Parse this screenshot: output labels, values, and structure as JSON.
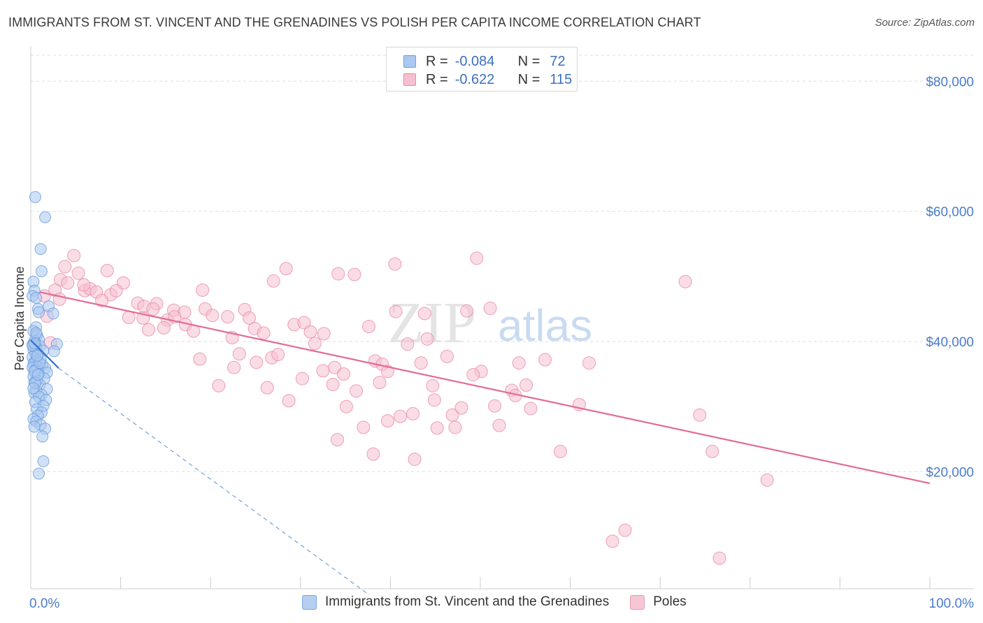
{
  "title": "IMMIGRANTS FROM ST. VINCENT AND THE GRENADINES VS POLISH PER CAPITA INCOME CORRELATION CHART",
  "source": "Source: ZipAtlas.com",
  "watermark": {
    "zip": "ZIP",
    "atlas": "atlas"
  },
  "legend": {
    "r_label": "R =",
    "n_label": "N =",
    "rows": [
      {
        "r": "-0.084",
        "n": "72",
        "color": "#aac8f0",
        "border": "#6f9fdf"
      },
      {
        "r": "-0.622",
        "n": "115",
        "color": "#f6bfd0",
        "border": "#e98aa9"
      }
    ]
  },
  "bottom_legend": [
    {
      "name": "Immigrants from St. Vincent and the Grenadines",
      "color": "#b6cff0",
      "border": "#7aa6de"
    },
    {
      "name": "Poles",
      "color": "#f7c6d5",
      "border": "#e79ab3"
    }
  ],
  "chart_data": {
    "type": "scatter",
    "title": "IMMIGRANTS FROM ST. VINCENT AND THE GRENADINES VS POLISH PER CAPITA INCOME CORRELATION CHART",
    "xlabel": "",
    "ylabel": "Per Capita Income",
    "xlim": [
      0,
      100
    ],
    "ylim": [
      2000,
      84000
    ],
    "x_tick_labels": [
      "0.0%",
      "100.0%"
    ],
    "y_ticks": [
      20000,
      40000,
      60000,
      80000
    ],
    "y_tick_labels": [
      "$20,000",
      "$40,000",
      "$60,000",
      "$80,000"
    ],
    "grid": true,
    "legend_position": "top-center",
    "series": [
      {
        "name": "Immigrants from St. Vincent and the Grenadines",
        "color": "#6f9fdf",
        "fill": "#aac8f0",
        "R": -0.084,
        "N": 72,
        "trend_solid": {
          "x": [
            0,
            3.1
          ],
          "y": [
            40200,
            35900
          ]
        },
        "trend_dashed": {
          "x": [
            3.1,
            37.5
          ],
          "y": [
            35900,
            1200
          ]
        },
        "points": [
          [
            0.5,
            62200
          ],
          [
            1.6,
            59100
          ],
          [
            1.1,
            54200
          ],
          [
            1.2,
            50800
          ],
          [
            0.3,
            49200
          ],
          [
            0.4,
            47800
          ],
          [
            0.2,
            47000
          ],
          [
            0.6,
            46700
          ],
          [
            2.0,
            45400
          ],
          [
            0.8,
            45000
          ],
          [
            0.9,
            44500
          ],
          [
            2.5,
            44300
          ],
          [
            0.6,
            42200
          ],
          [
            0.3,
            41600
          ],
          [
            0.7,
            41000
          ],
          [
            0.9,
            40300
          ],
          [
            0.4,
            40100
          ],
          [
            0.5,
            39800
          ],
          [
            0.2,
            39500
          ],
          [
            2.9,
            39600
          ],
          [
            1.0,
            39300
          ],
          [
            0.6,
            39000
          ],
          [
            0.3,
            38700
          ],
          [
            1.4,
            38600
          ],
          [
            2.6,
            38500
          ],
          [
            0.5,
            38200
          ],
          [
            0.8,
            37900
          ],
          [
            0.2,
            37600
          ],
          [
            1.1,
            37300
          ],
          [
            0.6,
            37100
          ],
          [
            0.4,
            36800
          ],
          [
            0.3,
            36500
          ],
          [
            1.3,
            36400
          ],
          [
            0.7,
            36200
          ],
          [
            0.2,
            36000
          ],
          [
            1.6,
            35900
          ],
          [
            0.5,
            35600
          ],
          [
            1.8,
            35200
          ],
          [
            0.9,
            35000
          ],
          [
            0.3,
            34600
          ],
          [
            1.5,
            34300
          ],
          [
            0.7,
            34000
          ],
          [
            0.4,
            33700
          ],
          [
            1.0,
            33400
          ],
          [
            1.8,
            32700
          ],
          [
            0.6,
            32400
          ],
          [
            0.4,
            32100
          ],
          [
            1.2,
            31800
          ],
          [
            0.9,
            31500
          ],
          [
            1.7,
            31000
          ],
          [
            0.5,
            30700
          ],
          [
            1.4,
            30100
          ],
          [
            0.7,
            29600
          ],
          [
            1.2,
            29100
          ],
          [
            0.8,
            28600
          ],
          [
            0.3,
            28100
          ],
          [
            0.6,
            27700
          ],
          [
            1.1,
            27200
          ],
          [
            0.4,
            26900
          ],
          [
            1.6,
            26600
          ],
          [
            1.3,
            25400
          ],
          [
            1.4,
            21600
          ],
          [
            0.9,
            19700
          ],
          [
            0.2,
            39400
          ],
          [
            0.4,
            35400
          ],
          [
            0.5,
            33600
          ],
          [
            0.3,
            32800
          ],
          [
            1.0,
            36700
          ],
          [
            0.6,
            41300
          ],
          [
            0.7,
            37800
          ],
          [
            0.8,
            34900
          ],
          [
            0.4,
            39700
          ]
        ]
      },
      {
        "name": "Poles",
        "color": "#e98aa9",
        "fill": "#f6bfd0",
        "R": -0.622,
        "N": 115,
        "trend_solid": {
          "x": [
            1.0,
            100
          ],
          "y": [
            47600,
            18200
          ]
        },
        "points": [
          [
            4.8,
            53200
          ],
          [
            3.8,
            51500
          ],
          [
            5.3,
            50500
          ],
          [
            3.3,
            49500
          ],
          [
            8.5,
            50900
          ],
          [
            10.3,
            49000
          ],
          [
            2.7,
            47900
          ],
          [
            6.0,
            47800
          ],
          [
            6.6,
            48100
          ],
          [
            7.3,
            47600
          ],
          [
            8.9,
            47200
          ],
          [
            9.5,
            47800
          ],
          [
            7.9,
            46300
          ],
          [
            11.9,
            45900
          ],
          [
            14.0,
            45800
          ],
          [
            12.6,
            45400
          ],
          [
            13.6,
            45000
          ],
          [
            15.9,
            44800
          ],
          [
            17.1,
            44500
          ],
          [
            10.9,
            43700
          ],
          [
            12.5,
            43600
          ],
          [
            15.2,
            43300
          ],
          [
            16.0,
            43800
          ],
          [
            17.2,
            42600
          ],
          [
            14.8,
            42100
          ],
          [
            18.1,
            41600
          ],
          [
            19.1,
            47900
          ],
          [
            19.4,
            45000
          ],
          [
            20.2,
            44000
          ],
          [
            21.9,
            43800
          ],
          [
            23.8,
            44900
          ],
          [
            24.3,
            43600
          ],
          [
            22.4,
            40600
          ],
          [
            23.2,
            38100
          ],
          [
            24.9,
            42000
          ],
          [
            25.9,
            41300
          ],
          [
            26.8,
            37500
          ],
          [
            27.0,
            49300
          ],
          [
            28.4,
            51200
          ],
          [
            27.5,
            38000
          ],
          [
            29.3,
            42600
          ],
          [
            30.4,
            42900
          ],
          [
            31.1,
            41500
          ],
          [
            31.6,
            39700
          ],
          [
            32.6,
            41200
          ],
          [
            33.8,
            36000
          ],
          [
            34.8,
            35000
          ],
          [
            34.2,
            50400
          ],
          [
            36.0,
            50300
          ],
          [
            37.6,
            42300
          ],
          [
            38.3,
            37000
          ],
          [
            39.1,
            36500
          ],
          [
            39.7,
            35400
          ],
          [
            40.5,
            51900
          ],
          [
            40.6,
            44600
          ],
          [
            38.8,
            33700
          ],
          [
            36.2,
            32400
          ],
          [
            35.1,
            30000
          ],
          [
            37.0,
            26800
          ],
          [
            34.1,
            24900
          ],
          [
            38.1,
            22700
          ],
          [
            39.7,
            27800
          ],
          [
            41.1,
            28500
          ],
          [
            41.9,
            39600
          ],
          [
            42.5,
            28900
          ],
          [
            43.8,
            44300
          ],
          [
            44.1,
            40400
          ],
          [
            43.4,
            36700
          ],
          [
            44.7,
            33200
          ],
          [
            45.2,
            26700
          ],
          [
            46.3,
            37700
          ],
          [
            46.9,
            28700
          ],
          [
            47.2,
            26800
          ],
          [
            47.9,
            29800
          ],
          [
            42.7,
            21900
          ],
          [
            48.5,
            44700
          ],
          [
            49.6,
            52800
          ],
          [
            50.1,
            35400
          ],
          [
            51.1,
            45100
          ],
          [
            51.6,
            30100
          ],
          [
            52.1,
            27100
          ],
          [
            53.5,
            32500
          ],
          [
            54.3,
            36700
          ],
          [
            55.1,
            33300
          ],
          [
            55.6,
            29700
          ],
          [
            57.2,
            37200
          ],
          [
            58.9,
            23100
          ],
          [
            61.0,
            30300
          ],
          [
            62.1,
            36700
          ],
          [
            64.7,
            9300
          ],
          [
            66.1,
            11000
          ],
          [
            72.8,
            49200
          ],
          [
            74.4,
            28700
          ],
          [
            75.8,
            23100
          ],
          [
            81.9,
            18700
          ],
          [
            76.6,
            6700
          ],
          [
            3.2,
            46500
          ],
          [
            4.1,
            49000
          ],
          [
            5.9,
            48700
          ],
          [
            13.1,
            41800
          ],
          [
            18.8,
            37300
          ],
          [
            20.9,
            33200
          ],
          [
            22.6,
            36000
          ],
          [
            25.1,
            36800
          ],
          [
            26.3,
            32900
          ],
          [
            30.2,
            34300
          ],
          [
            32.5,
            35500
          ],
          [
            33.6,
            33400
          ],
          [
            28.7,
            30900
          ],
          [
            44.9,
            31000
          ],
          [
            49.2,
            34900
          ],
          [
            53.9,
            31700
          ],
          [
            1.8,
            43900
          ],
          [
            2.2,
            39800
          ],
          [
            1.5,
            47000
          ]
        ]
      }
    ]
  }
}
